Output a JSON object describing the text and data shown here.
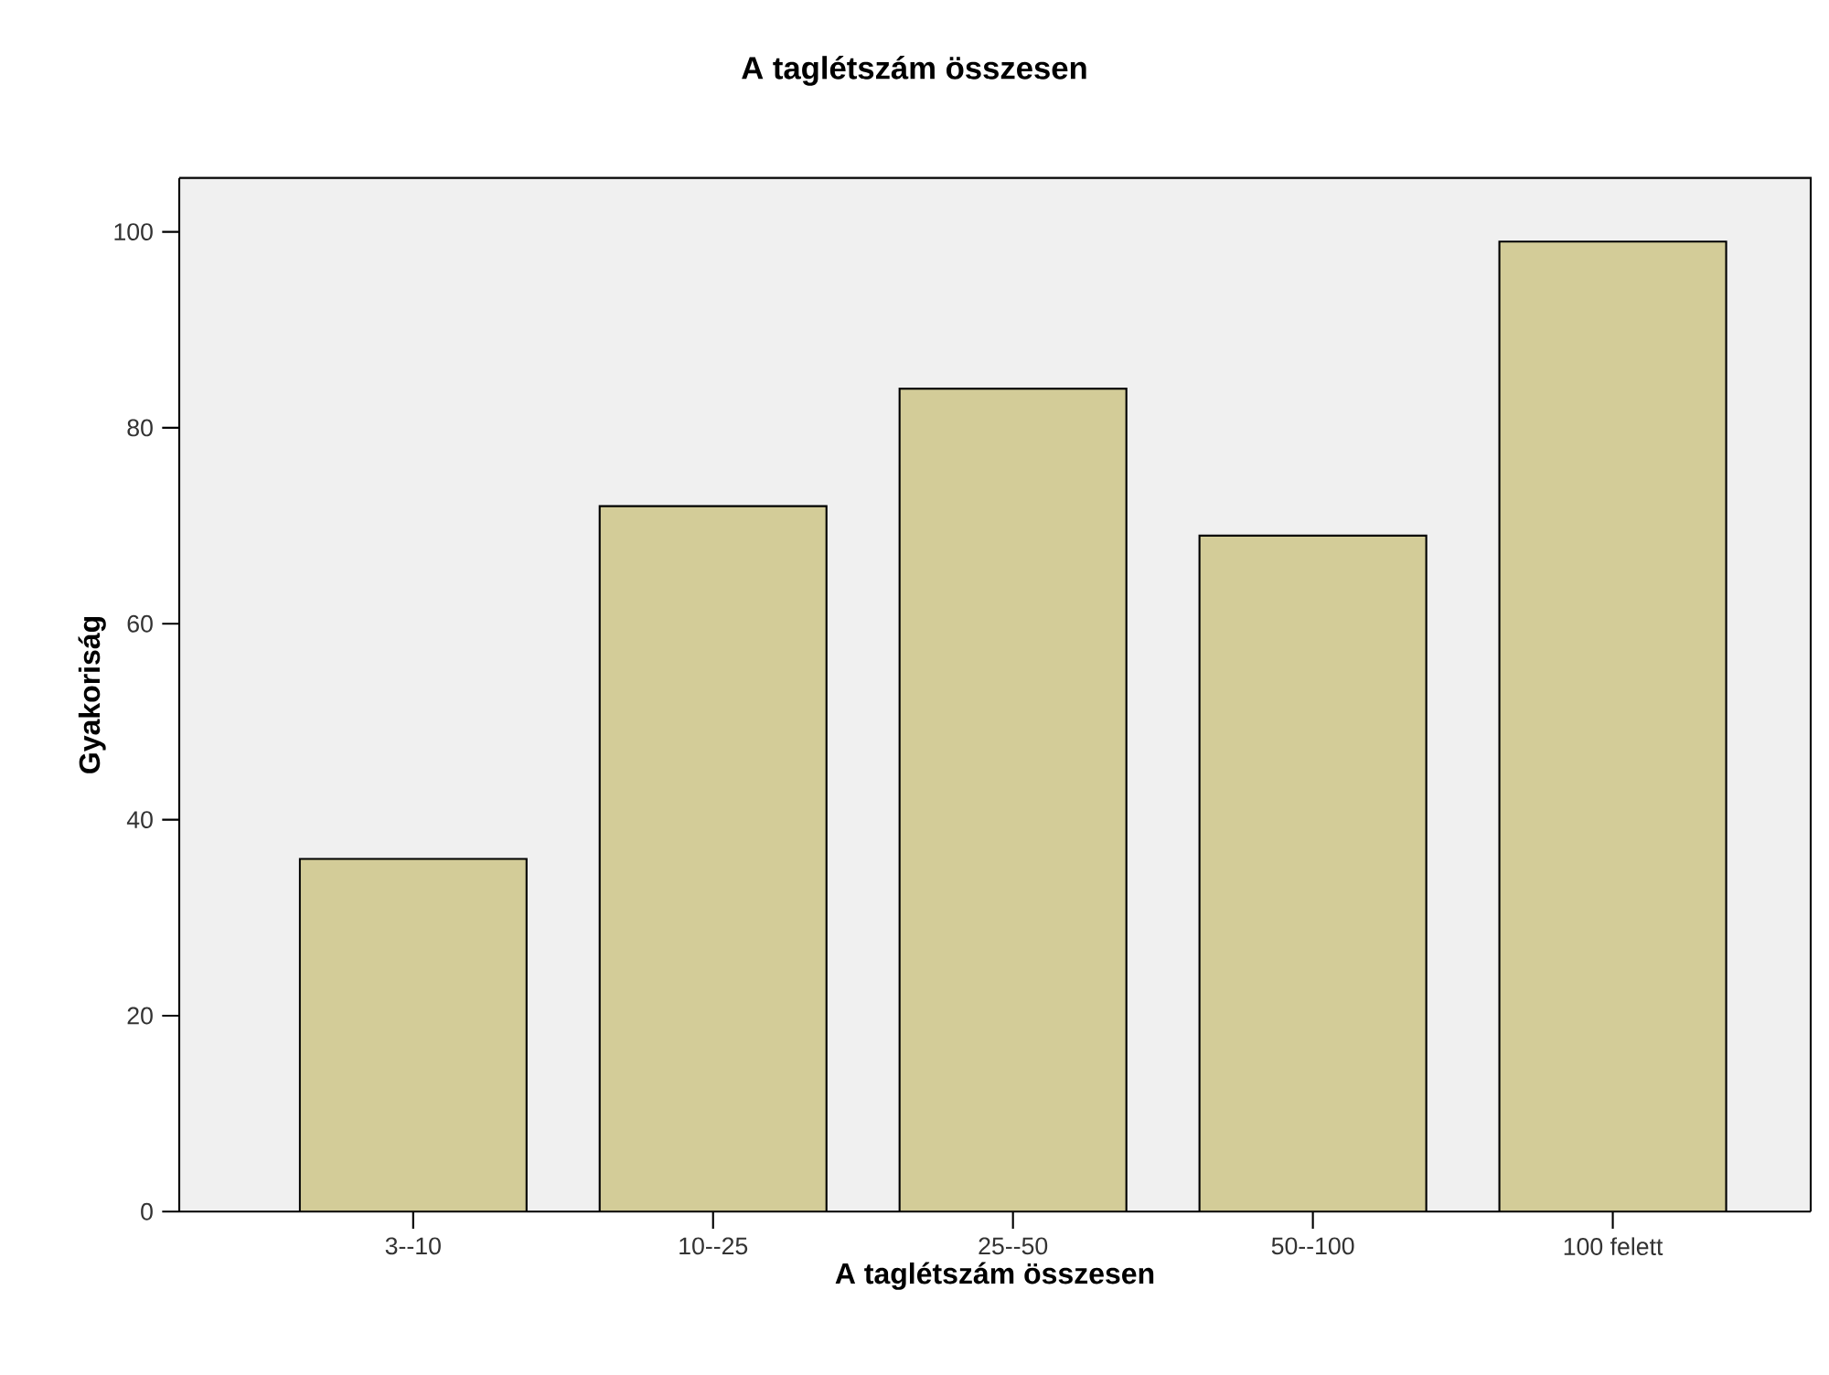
{
  "chart_data": {
    "type": "bar",
    "title": "A taglétszám összesen",
    "xlabel": "A taglétszám összesen",
    "ylabel": "Gyakoriság",
    "categories": [
      "3--10",
      "10--25",
      "25--50",
      "50--100",
      "100 felett"
    ],
    "values": [
      36,
      72,
      84,
      69,
      99
    ],
    "color": "#d3cc98",
    "ylim": [
      0,
      105.5
    ],
    "yticks": [
      0,
      20,
      40,
      60,
      80,
      100
    ],
    "grid": false
  }
}
